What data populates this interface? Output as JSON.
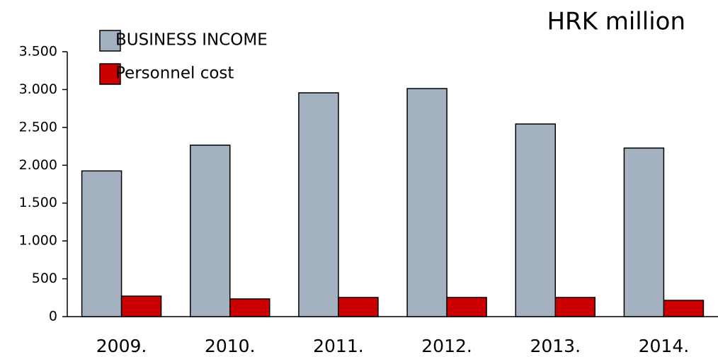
{
  "chart_data": {
    "type": "bar",
    "title": "HRK million",
    "categories": [
      "2009.",
      "2010.",
      "2011.",
      "2012.",
      "2013.",
      "2014."
    ],
    "series": [
      {
        "name": "BUSINESS INCOME",
        "color": "#a3b1c0",
        "values": [
          1925,
          2265,
          2957,
          3013,
          2545,
          2227
        ]
      },
      {
        "name": "Personnel cost",
        "color": "#cc0000",
        "values": [
          271,
          234,
          253,
          253,
          253,
          215
        ]
      }
    ],
    "ylim": [
      0,
      3500
    ],
    "yticks": [
      0,
      500,
      {
        "value": 1000,
        "label": "1.000"
      },
      {
        "value": 1500,
        "label": "1.500"
      },
      {
        "value": 2000,
        "label": "2.000"
      },
      {
        "value": 2500,
        "label": "2.500"
      },
      {
        "value": 3000,
        "label": "3.000"
      },
      {
        "value": 3500,
        "label": "3.500"
      }
    ],
    "grid": false,
    "legend": "top-left"
  }
}
